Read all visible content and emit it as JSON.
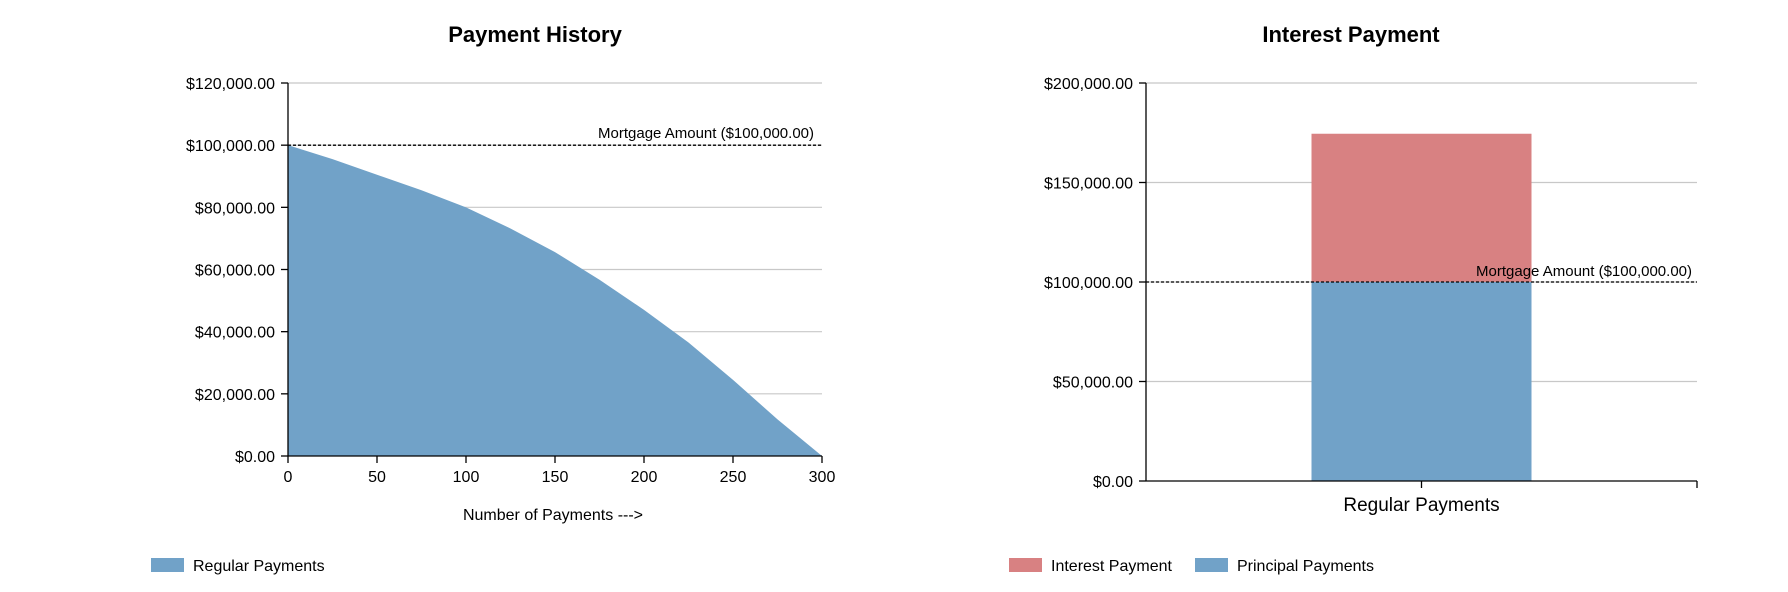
{
  "chart_data": [
    {
      "type": "area",
      "title": "Payment History",
      "xlabel": "Number of Payments --->",
      "ylabel": "",
      "xlim": [
        0,
        300
      ],
      "ylim": [
        0,
        120000
      ],
      "x_ticks": [
        0,
        50,
        100,
        150,
        200,
        250,
        300
      ],
      "x_tick_labels": [
        "0",
        "50",
        "100",
        "150",
        "200",
        "250",
        "300"
      ],
      "y_ticks": [
        0,
        20000,
        40000,
        60000,
        80000,
        100000,
        120000
      ],
      "y_tick_labels": [
        "$0.00",
        "$20,000.00",
        "$40,000.00",
        "$60,000.00",
        "$80,000.00",
        "$100,000.00",
        "$120,000.00"
      ],
      "grid": true,
      "legend_position": "bottom-left",
      "series": [
        {
          "name": "Regular Payments",
          "color": "#71a2c8",
          "x": [
            0,
            25,
            50,
            75,
            100,
            125,
            150,
            175,
            200,
            225,
            250,
            275,
            300
          ],
          "y": [
            100000,
            95500,
            90500,
            85500,
            80000,
            73200,
            65600,
            56700,
            47000,
            36500,
            24500,
            11800,
            0
          ]
        }
      ],
      "reference_line": {
        "value": 100000,
        "label": "Mortgage Amount ($100,000.00)"
      }
    },
    {
      "type": "bar",
      "stacked": true,
      "title": "Interest Payment",
      "xlabel": "",
      "ylabel": "",
      "categories": [
        "Regular Payments"
      ],
      "ylim": [
        0,
        200000
      ],
      "y_ticks": [
        0,
        50000,
        100000,
        150000,
        200000
      ],
      "y_tick_labels": [
        "$0.00",
        "$50,000.00",
        "$100,000.00",
        "$150,000.00",
        "$200,000.00"
      ],
      "grid": true,
      "legend_position": "bottom-left",
      "series": [
        {
          "name": "Principal Payments",
          "color": "#71a2c8",
          "values": [
            100000
          ]
        },
        {
          "name": "Interest Payment",
          "color": "#d88182",
          "values": [
            74500
          ]
        }
      ],
      "legend_order": [
        "Interest Payment",
        "Principal Payments"
      ],
      "reference_line": {
        "value": 100000,
        "label": "Mortgage Amount ($100,000.00)"
      }
    }
  ]
}
